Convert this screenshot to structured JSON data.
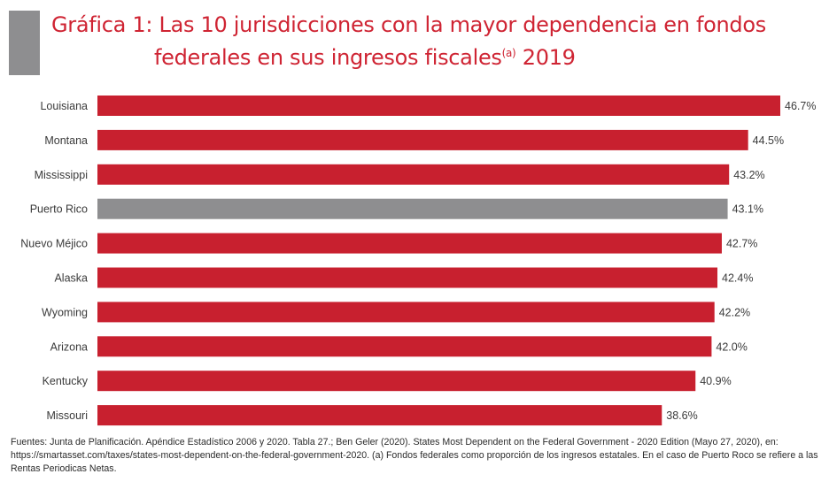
{
  "title": {
    "line1": "Gráfica 1: Las 10 jurisdicciones con la mayor dependencia en fondos",
    "line2_prefix": "federales en sus ingresos fiscales",
    "superscript": "(a)",
    "line2_suffix": " 2019"
  },
  "footnote": "Fuentes: Junta de Planificación. Apéndice Estadístico 2006 y 2020. Tabla 27.; Ben Geler (2020). States Most Dependent on the Federal Government - 2020 Edition (Mayo 27, 2020), en: https://smartasset.com/taxes/states-most-dependent-on-the-federal-government-2020. (a) Fondos federales como proporción de los ingresos estatales. En el caso de Puerto Roco se refiere a las Rentas Periodicas Netas.",
  "colors": {
    "bar": "#c8202f",
    "highlight": "#8e8e90",
    "title": "#cf2433"
  },
  "chart_data": {
    "type": "bar",
    "orientation": "horizontal",
    "categories": [
      "Louisiana",
      "Montana",
      "Mississippi",
      "Puerto Rico",
      "Nuevo Méjico",
      "Alaska",
      "Wyoming",
      "Arizona",
      "Kentucky",
      "Missouri"
    ],
    "values": [
      46.7,
      44.5,
      43.2,
      43.1,
      42.7,
      42.4,
      42.2,
      42.0,
      40.9,
      38.6
    ],
    "value_labels": [
      "46.7%",
      "44.5%",
      "43.2%",
      "43.1%",
      "42.7%",
      "42.4%",
      "42.2%",
      "42.0%",
      "40.9%",
      "38.6%"
    ],
    "highlighted_category": "Puerto Rico",
    "xlim": [
      0,
      46.7
    ],
    "grid": false,
    "legend": "none"
  }
}
